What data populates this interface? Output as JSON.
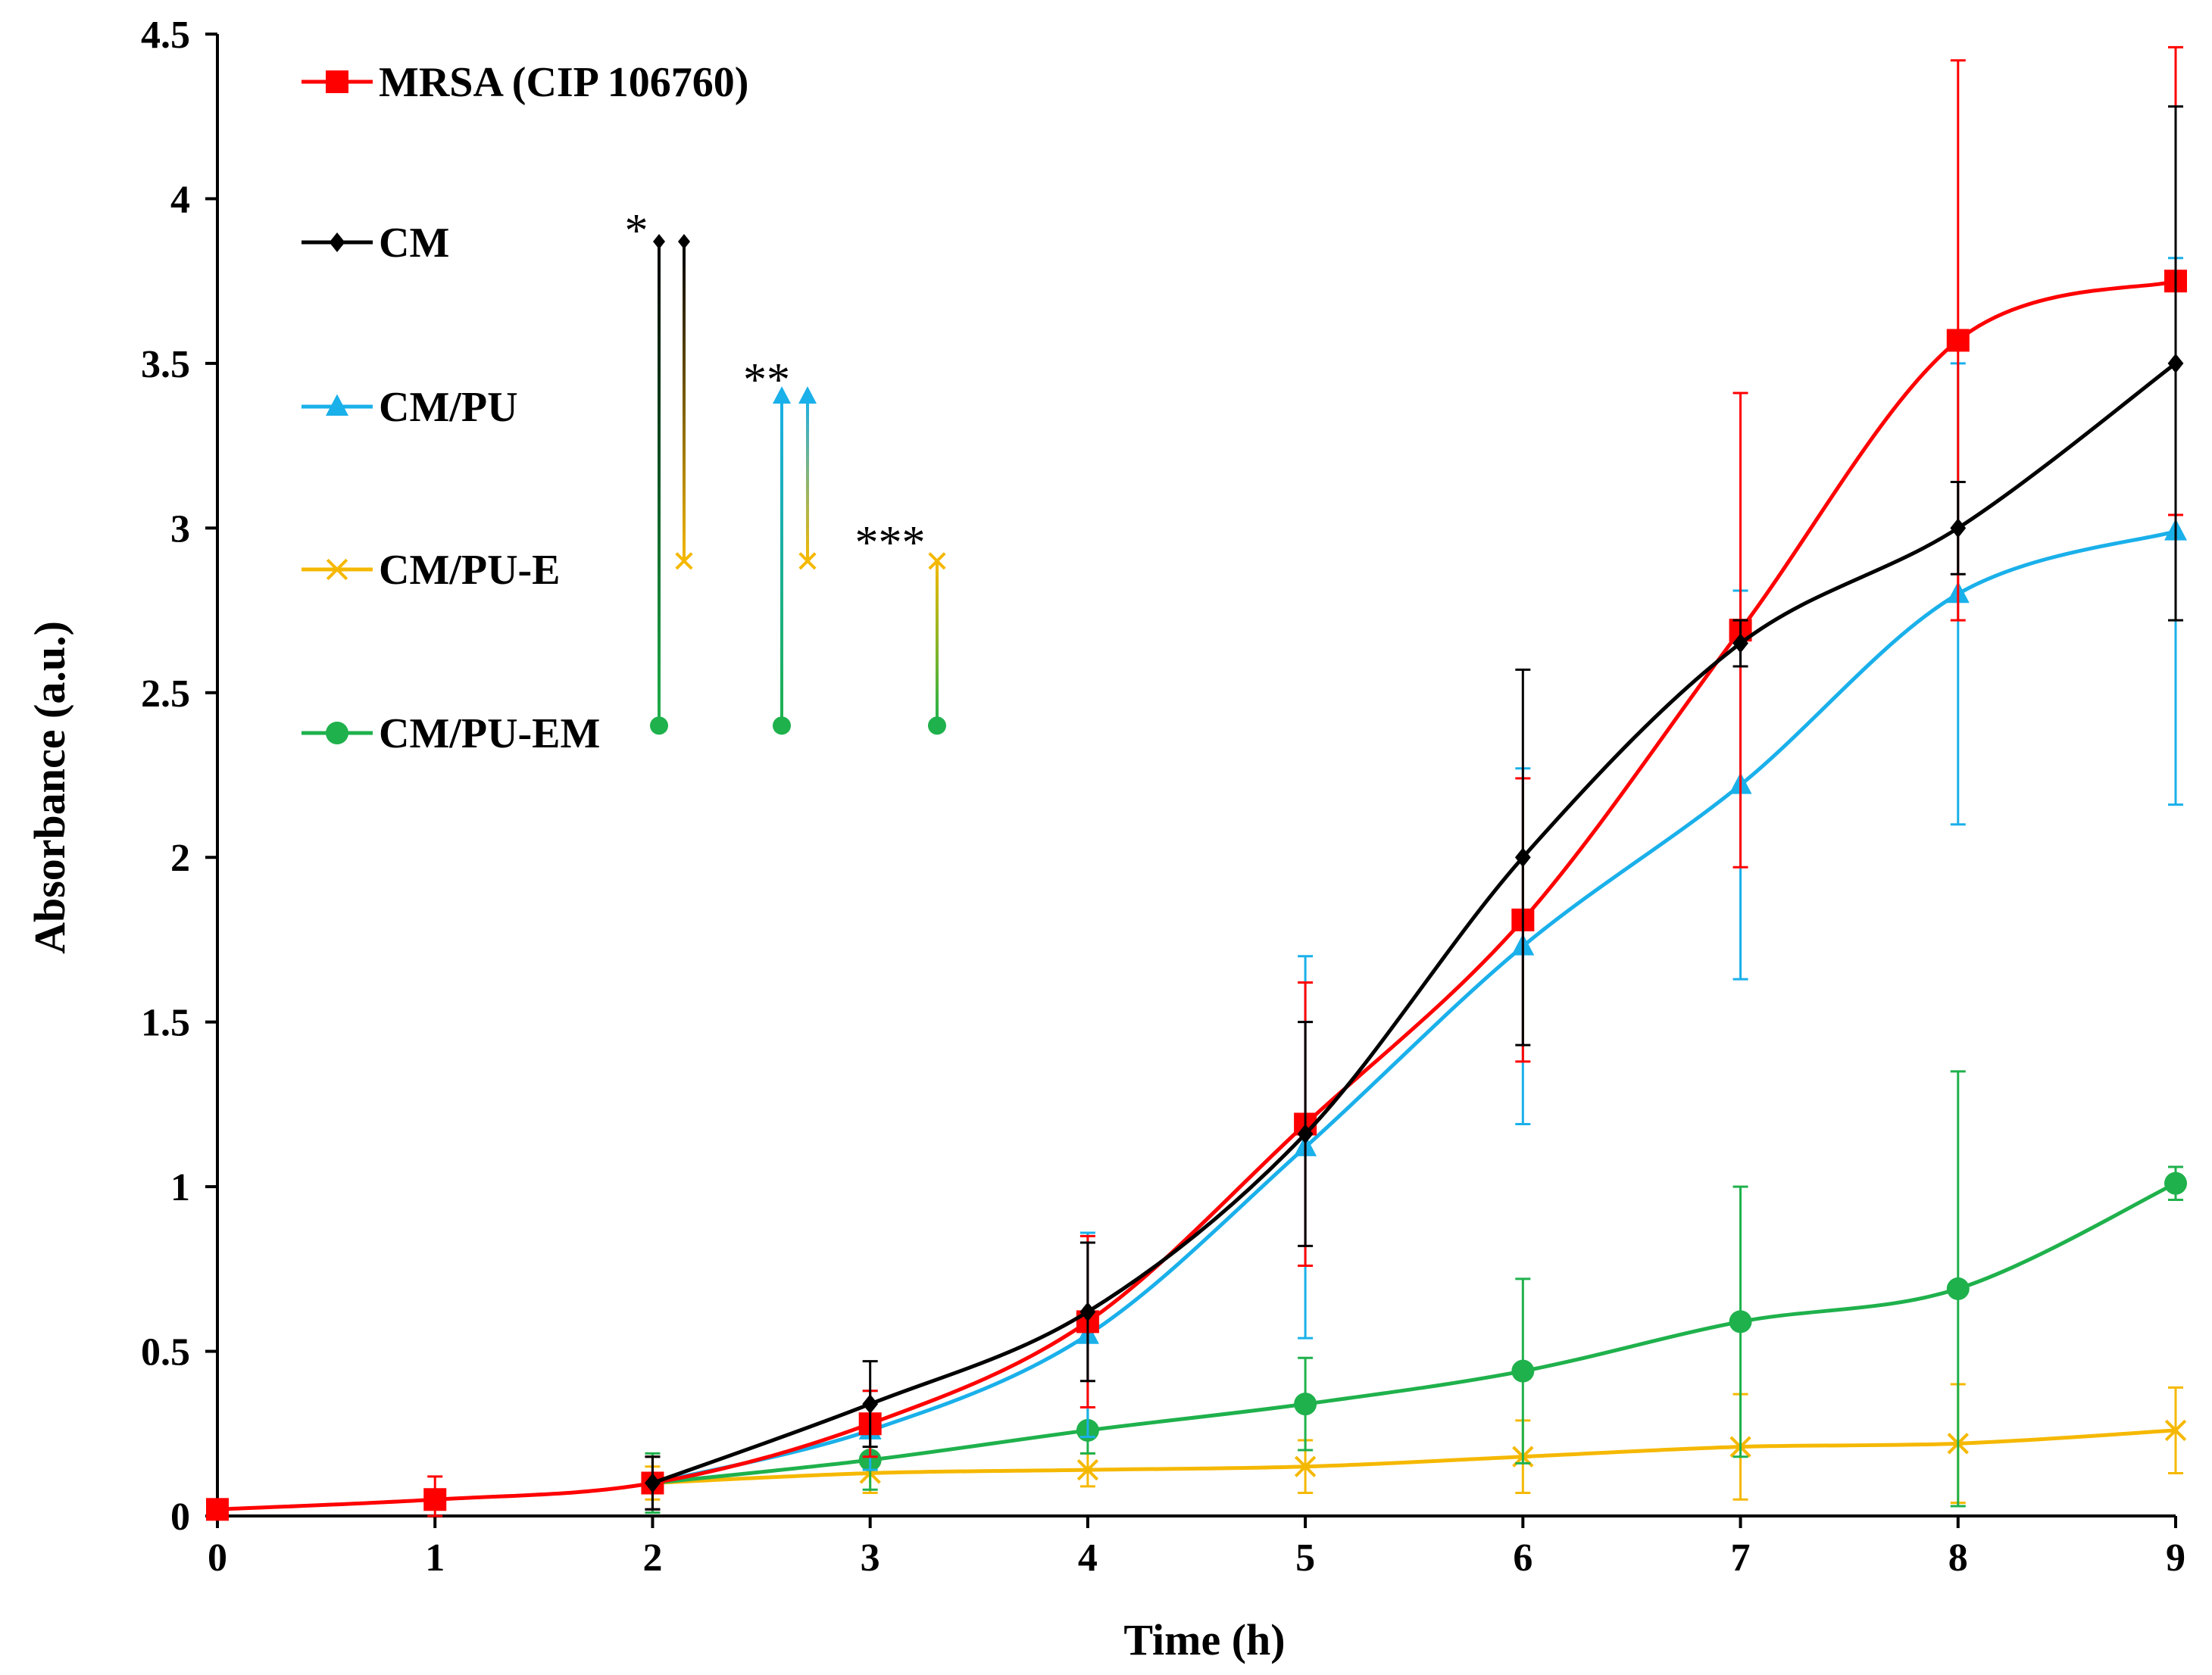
{
  "chart_data": {
    "type": "line",
    "title": "",
    "xlabel": "Time (h)",
    "ylabel": "Absorbance (a.u.)",
    "xlim": [
      0,
      9
    ],
    "ylim": [
      0,
      4.5
    ],
    "x_ticks": [
      "0",
      "1",
      "2",
      "3",
      "4",
      "5",
      "6",
      "7",
      "8",
      "9"
    ],
    "y_ticks": [
      "0",
      "0.5",
      "1",
      "1.5",
      "2",
      "2.5",
      "3",
      "3.5",
      "4",
      "4.5"
    ],
    "grid": false,
    "legend_position": "top-left",
    "series": [
      {
        "name": "MRSA (CIP 106760)",
        "color": "#ff0000",
        "marker": "square",
        "x": [
          0,
          1,
          2,
          3,
          4,
          5,
          6,
          7,
          8,
          9
        ],
        "y": [
          0.02,
          0.05,
          0.1,
          0.28,
          0.59,
          1.19,
          1.81,
          2.69,
          3.57,
          3.75
        ],
        "err": [
          0,
          0.07,
          0.08,
          0.1,
          0.26,
          0.43,
          0.43,
          0.72,
          0.85,
          0.71
        ]
      },
      {
        "name": "CM",
        "color": "#000000",
        "marker": "diamond",
        "x": [
          2,
          3,
          4,
          5,
          6,
          7,
          8,
          9
        ],
        "y": [
          0.1,
          0.34,
          0.62,
          1.16,
          2.0,
          2.65,
          3.0,
          3.5
        ],
        "err": [
          0.08,
          0.13,
          0.21,
          0.34,
          0.57,
          0.07,
          0.14,
          0.78
        ]
      },
      {
        "name": "CM/PU",
        "color": "#1ab0ea",
        "marker": "triangle",
        "x": [
          2,
          3,
          4,
          5,
          6,
          7,
          8,
          9
        ],
        "y": [
          0.1,
          0.26,
          0.55,
          1.12,
          1.73,
          2.22,
          2.8,
          2.99
        ],
        "err": [
          0.08,
          0.12,
          0.31,
          0.58,
          0.54,
          0.59,
          0.7,
          0.83
        ]
      },
      {
        "name": "CM/PU-E",
        "color": "#f5b800",
        "marker": "x",
        "x": [
          2,
          3,
          4,
          5,
          6,
          7,
          8,
          9
        ],
        "y": [
          0.1,
          0.13,
          0.14,
          0.15,
          0.18,
          0.21,
          0.22,
          0.26
        ],
        "err": [
          0.05,
          0.06,
          0.05,
          0.08,
          0.11,
          0.16,
          0.18,
          0.13
        ]
      },
      {
        "name": "CM/PU-EM",
        "color": "#1fb14c",
        "marker": "circle",
        "x": [
          2,
          3,
          4,
          5,
          6,
          7,
          8,
          9
        ],
        "y": [
          0.1,
          0.17,
          0.26,
          0.34,
          0.44,
          0.59,
          0.69,
          1.01
        ],
        "err": [
          0.09,
          0.09,
          0.07,
          0.14,
          0.28,
          0.41,
          0.66,
          0.05
        ]
      }
    ],
    "significance": [
      {
        "label": "*",
        "pairs": [
          {
            "top": "CM",
            "bottom": "CM/PU-EM",
            "top_y": 3.87,
            "bottom_y": 2.4
          },
          {
            "top": "CM",
            "bottom": "CM/PU-E",
            "top_y": 3.87,
            "bottom_y": 2.9
          }
        ]
      },
      {
        "label": "**",
        "pairs": [
          {
            "top": "CM/PU",
            "bottom": "CM/PU-EM",
            "top_y": 3.4,
            "bottom_y": 2.4
          },
          {
            "top": "CM/PU",
            "bottom": "CM/PU-E",
            "top_y": 3.4,
            "bottom_y": 2.9
          }
        ]
      },
      {
        "label": "***",
        "pairs": [
          {
            "top": "CM/PU-E",
            "bottom": "CM/PU-EM",
            "top_y": 2.9,
            "bottom_y": 2.4
          }
        ]
      }
    ]
  }
}
